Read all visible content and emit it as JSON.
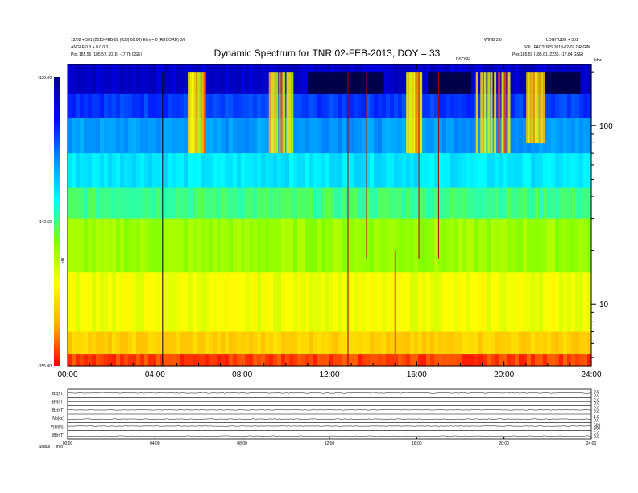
{
  "page": {
    "header_left_line1": "12/02 + 501 (2013-FEB-02 (033) 00:00) Elev = 0 (RECORD) 0/0",
    "header_left_line2": "ANGLE 0.3 + 0.0 0.0",
    "header_left_line3": "Pos 185.56 (185.57, 2016, -17.78 GSE)",
    "header_right_line1": "LOGITUDE + 501",
    "header_right_line2": "SOL, FACTORS 2013-02-02 ORIGIN",
    "header_right_line3": "Pos 185.59 (185.61, 2236, -17.84 GSE)",
    "header_mid_right": "WIND 3.0",
    "header_center_small": "DSOSE",
    "corner_right_label": "kHz",
    "footer_label_1": "Status",
    "footer_label_2": "info"
  },
  "chart_data": [
    {
      "type": "heatmap",
      "title": "Dynamic Spectrum for TNR 02-FEB-2013, DOY = 33",
      "x": {
        "ticks": [
          "00:00",
          "04:00",
          "08:00",
          "12:00",
          "16:00",
          "20:00",
          "24:00"
        ],
        "range_hours": [
          0,
          24
        ]
      },
      "y_right": {
        "scale": "log",
        "ticks": [
          10,
          100
        ],
        "range": [
          4.5,
          220
        ],
        "unit_label": "kHz"
      },
      "colorbar": {
        "label": "dB",
        "ticks": [
          "-130.00",
          "-142.50",
          "-155.00"
        ],
        "range": [
          -155,
          -130
        ],
        "colors": [
          "#00008a",
          "#0000ff",
          "#0090ff",
          "#00ffff",
          "#80ff00",
          "#ffff00",
          "#ffb000",
          "#ff0000"
        ]
      },
      "grid": false,
      "background_bands": [
        {
          "freq_low": 150,
          "freq_high": 220,
          "level": 0.08
        },
        {
          "freq_low": 110,
          "freq_high": 150,
          "level": 0.2
        },
        {
          "freq_low": 70,
          "freq_high": 110,
          "level": 0.3
        },
        {
          "freq_low": 45,
          "freq_high": 70,
          "level": 0.4
        },
        {
          "freq_low": 30,
          "freq_high": 45,
          "level": 0.5
        },
        {
          "freq_low": 15,
          "freq_high": 30,
          "level": 0.6
        },
        {
          "freq_low": 7,
          "freq_high": 15,
          "level": 0.7
        },
        {
          "freq_low": 5.2,
          "freq_high": 7,
          "level": 0.8
        },
        {
          "freq_low": 4.5,
          "freq_high": 5.2,
          "level": 0.95
        }
      ],
      "radio_bursts": [
        {
          "start_hour": 5.5,
          "end_hour": 6.3,
          "freq_low": 70,
          "freq_high": 200
        },
        {
          "start_hour": 9.2,
          "end_hour": 10.3,
          "freq_low": 70,
          "freq_high": 200
        },
        {
          "start_hour": 15.5,
          "end_hour": 16.2,
          "freq_low": 70,
          "freq_high": 200
        },
        {
          "start_hour": 18.7,
          "end_hour": 20.3,
          "freq_low": 70,
          "freq_high": 200
        },
        {
          "start_hour": 21.0,
          "end_hour": 21.8,
          "freq_low": 80,
          "freq_high": 200
        }
      ],
      "dark_patches": [
        {
          "start_hour": 11.0,
          "end_hour": 14.5,
          "freq_low": 150,
          "freq_high": 200
        },
        {
          "start_hour": 16.5,
          "end_hour": 18.5,
          "freq_low": 150,
          "freq_high": 200
        },
        {
          "start_hour": 21.5,
          "end_hour": 23.5,
          "freq_low": 150,
          "freq_high": 200
        }
      ],
      "spikes": [
        {
          "hour": 4.35,
          "freq_low": 4.5,
          "freq_high": 200,
          "color": "#000000"
        },
        {
          "hour": 12.85,
          "freq_low": 4.5,
          "freq_high": 200,
          "color": "#aa0000"
        },
        {
          "hour": 13.7,
          "freq_low": 18,
          "freq_high": 200,
          "color": "#aa0000"
        },
        {
          "hour": 15.0,
          "freq_low": 5,
          "freq_high": 20,
          "color": "#cc6600"
        },
        {
          "hour": 16.1,
          "freq_low": 18,
          "freq_high": 200,
          "color": "#aa0000"
        },
        {
          "hour": 17.0,
          "freq_low": 18,
          "freq_high": 200,
          "color": "#aa0000"
        }
      ]
    },
    {
      "type": "line",
      "title": "",
      "x": {
        "ticks": [
          "00:00",
          "04:00",
          "08:00",
          "12:00",
          "16:00",
          "20:00",
          "24:00"
        ],
        "range_hours": [
          0,
          24
        ]
      },
      "panels": [
        {
          "label": "Bx(nT)",
          "right_ticks": [
            "0.0",
            "2.0"
          ],
          "level": 0.55,
          "noise": 0.12
        },
        {
          "label": "By(nT)",
          "right_ticks": [
            "0.0",
            "2.0"
          ],
          "level": 0.5,
          "noise": 0.05
        },
        {
          "label": "Bz(nT)",
          "right_ticks": [
            "0.0",
            "2.0"
          ],
          "level": 0.5,
          "noise": 0.05
        },
        {
          "label": "Np(cc)",
          "right_ticks": [
            "0.0",
            "1.0"
          ],
          "level": 0.4,
          "noise": 0.08
        },
        {
          "label": "V(km/s)",
          "right_ticks": [
            "300",
            "600"
          ],
          "level": 0.55,
          "noise": 0.05
        },
        {
          "label": "|B|(nT)",
          "right_ticks": [
            "0.0",
            "5.0"
          ],
          "level": 0.35,
          "noise": 0.1
        }
      ]
    }
  ]
}
